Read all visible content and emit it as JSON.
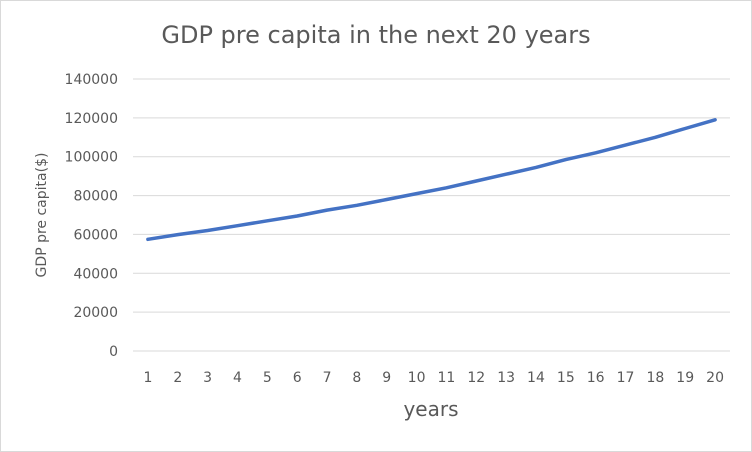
{
  "chart_data": {
    "type": "line",
    "title": "GDP pre capita in the next 20 years",
    "xlabel": "years",
    "ylabel": "GDP pre capita($)",
    "x": [
      1,
      2,
      3,
      4,
      5,
      6,
      7,
      8,
      9,
      10,
      11,
      12,
      13,
      14,
      15,
      16,
      17,
      18,
      19,
      20
    ],
    "series": [
      {
        "values": [
          57500,
          59900,
          62000,
          64500,
          67000,
          69500,
          72500,
          75000,
          78000,
          81000,
          84000,
          87500,
          91000,
          94500,
          98500,
          102000,
          106000,
          110000,
          114500,
          119000
        ],
        "color": "#4472c4"
      }
    ],
    "ylim": [
      0,
      140000
    ],
    "yticks": [
      0,
      20000,
      40000,
      60000,
      80000,
      100000,
      120000,
      140000
    ],
    "grid": true,
    "legend": "none"
  }
}
